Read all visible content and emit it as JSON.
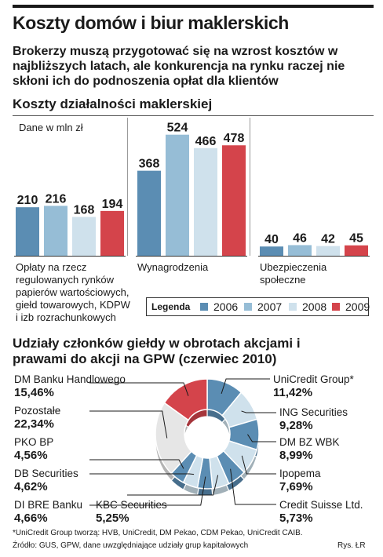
{
  "headline": "Koszty domów i biur maklerskich",
  "subhead": "Brokerzy muszą przygotować się na wzrost kosztów w najbliższych latach, ale konkurencja na rynku raczej nie skłoni ich do podnoszenia opłat dla klientów",
  "footnote": "*UniCredit Group tworzą: HVB, UniCredit, DM Pekao, CDM Pekao, UniCredit CAIB.",
  "source": "Źródło: GUS, GPW, dane uwzględniające udziały grup kapitałowych",
  "credit": "Rys. ŁR",
  "chart_data": [
    {
      "type": "bar",
      "title": "Koszty działalności maklerskiej",
      "units_label": "Dane w mln zł",
      "categories": [
        "Opłaty na rzecz regulowanych rynków papierów wartościowych, giełd towarowych, KDPW i izb rozrachunkowych",
        "Wynagrodzenia",
        "Ubezpieczenia społeczne"
      ],
      "category_lines": [
        [
          "Opłaty na rzecz",
          "regulowanych rynków",
          "papierów wartościowych,",
          "giełd towarowych, KDPW",
          "i izb rozrachunkowych"
        ],
        [
          "Wynagrodzenia"
        ],
        [
          "Ubezpieczenia",
          "społeczne"
        ]
      ],
      "series": [
        {
          "name": "2006",
          "color": "#5b8db3",
          "values": [
            210,
            368,
            40
          ]
        },
        {
          "name": "2007",
          "color": "#96bdd6",
          "values": [
            216,
            524,
            46
          ]
        },
        {
          "name": "2008",
          "color": "#cfe1ec",
          "values": [
            168,
            466,
            42
          ]
        },
        {
          "name": "2009",
          "color": "#d4444b",
          "values": [
            194,
            478,
            45
          ]
        }
      ],
      "legend_title": "Legenda",
      "ylim": [
        0,
        560
      ],
      "grid": false,
      "legend_position": "bottom-right"
    },
    {
      "type": "pie",
      "title": "Udziały członków giełdy w obrotach akcjami i prawami do akcji na GPW (czerwiec 2010)",
      "slices": [
        {
          "label": "UniCredit Group*",
          "value": 11.42,
          "value_label": "11,42%",
          "color": "#5b8db3"
        },
        {
          "label": "ING Securities",
          "value": 9.28,
          "value_label": "9,28%",
          "color": "#cfe1ec"
        },
        {
          "label": "DM BZ WBK",
          "value": 8.99,
          "value_label": "8,99%",
          "color": "#5b8db3"
        },
        {
          "label": "Ipopema",
          "value": 7.69,
          "value_label": "7,69%",
          "color": "#cfe1ec"
        },
        {
          "label": "Credit Suisse Ltd.",
          "value": 5.73,
          "value_label": "5,73%",
          "color": "#5b8db3"
        },
        {
          "label": "KBC Securities",
          "value": 5.25,
          "value_label": "5,25%",
          "color": "#cfe1ec"
        },
        {
          "label": "DI BRE Banku",
          "value": 4.66,
          "value_label": "4,66%",
          "color": "#5b8db3"
        },
        {
          "label": "DB Securities",
          "value": 4.62,
          "value_label": "4,62%",
          "color": "#cfe1ec"
        },
        {
          "label": "PKO BP",
          "value": 4.56,
          "value_label": "4,56%",
          "color": "#5b8db3"
        },
        {
          "label": "Pozostałe",
          "value": 22.34,
          "value_label": "22,34%",
          "color": "#e6e6e6"
        },
        {
          "label": "DM Banku Handlowego",
          "value": 15.46,
          "value_label": "15,46%",
          "color": "#d4444b"
        }
      ]
    }
  ]
}
